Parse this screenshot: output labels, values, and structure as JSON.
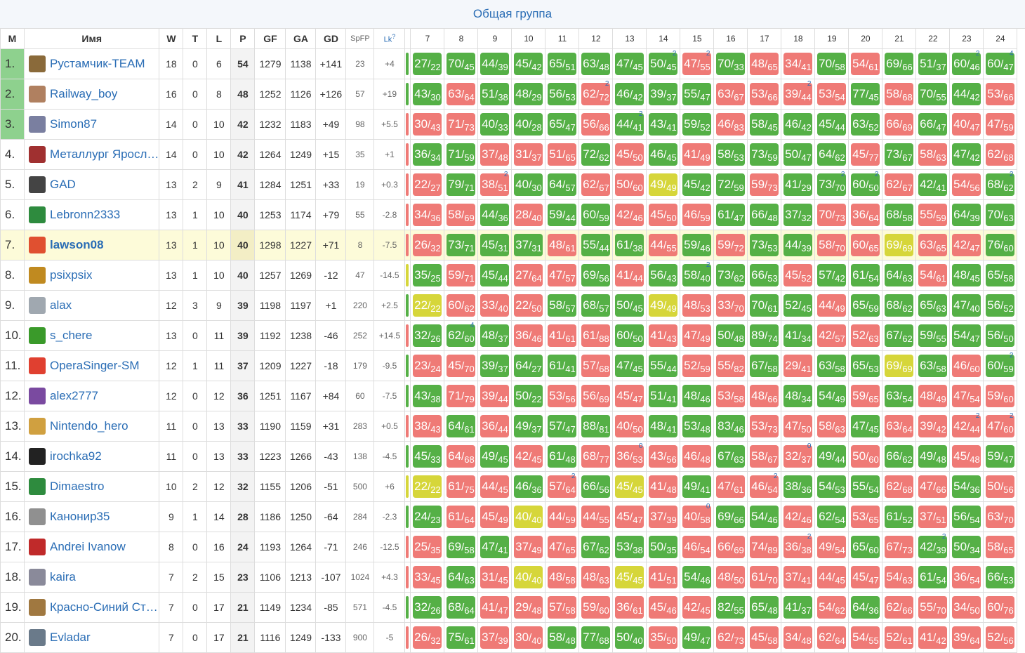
{
  "title": "Общая группа",
  "headers": {
    "m": "M",
    "name": "Имя",
    "w": "W",
    "t": "T",
    "l": "L",
    "p": "P",
    "gf": "GF",
    "ga": "GA",
    "gd": "GD",
    "spfp": "SpFP",
    "lk": "Lk",
    "lk_sup": "?"
  },
  "rounds": [
    "7",
    "8",
    "9",
    "10",
    "11",
    "12",
    "13",
    "14",
    "15",
    "16",
    "17",
    "18",
    "19",
    "20",
    "21",
    "22",
    "23",
    "24"
  ],
  "colors": {
    "win": "#55b046",
    "loss": "#ef7a76",
    "draw": "#d6d63a",
    "link": "#2a6db5",
    "top3": "#8ed18e",
    "highlight": "#fdfbd9"
  },
  "rows": [
    {
      "pos": "1.",
      "name": "Рустамчик-TEAM",
      "avatar": "#8a6a3a",
      "w": "18",
      "t": "0",
      "l": "6",
      "p": "54",
      "gf": "1279",
      "ga": "1138",
      "gd": "+141",
      "spfp": "23",
      "lk": "+4",
      "strip": "#55b046",
      "games": [
        "27/22",
        "70/45",
        "44/39",
        "45/42",
        "65/51",
        "63/48",
        "47/45",
        "50/45",
        "47/55",
        "70/33",
        "48/65",
        "34/41",
        "70/58",
        "54/61",
        "69/66",
        "51/37",
        "60/46",
        "60/47"
      ],
      "marks": {
        "7": "2",
        "8": "2",
        "16": "2",
        "17": "4"
      }
    },
    {
      "pos": "2.",
      "name": "Railway_boy",
      "avatar": "#b08060",
      "w": "16",
      "t": "0",
      "l": "8",
      "p": "48",
      "gf": "1252",
      "ga": "1126",
      "gd": "+126",
      "spfp": "57",
      "lk": "+19",
      "strip": "#55b046",
      "games": [
        "43/30",
        "63/64",
        "51/38",
        "48/29",
        "56/53",
        "62/72",
        "46/42",
        "39/37",
        "55/47",
        "63/67",
        "53/66",
        "39/44",
        "53/54",
        "77/45",
        "58/68",
        "70/55",
        "44/42",
        "53/66"
      ],
      "marks": {
        "5": "2",
        "11": "2"
      }
    },
    {
      "pos": "3.",
      "name": "Simon87",
      "avatar": "#7a7fa0",
      "w": "14",
      "t": "0",
      "l": "10",
      "p": "42",
      "gf": "1232",
      "ga": "1183",
      "gd": "+49",
      "spfp": "98",
      "lk": "+5.5",
      "strip": "#ef7a76",
      "games": [
        "30/43",
        "71/73",
        "40/33",
        "40/28",
        "65/47",
        "56/66",
        "44/41",
        "43/41",
        "59/52",
        "46/83",
        "58/45",
        "46/42",
        "45/44",
        "63/52",
        "66/69",
        "66/47",
        "40/47",
        "47/59"
      ],
      "marks": {
        "6": "2"
      }
    },
    {
      "pos": "4.",
      "name": "Металлург Яросл…",
      "avatar": "#a03030",
      "w": "14",
      "t": "0",
      "l": "10",
      "p": "42",
      "gf": "1264",
      "ga": "1249",
      "gd": "+15",
      "spfp": "35",
      "lk": "+1",
      "strip": "#ef7a76",
      "games": [
        "36/34",
        "71/59",
        "37/48",
        "31/37",
        "51/65",
        "72/62",
        "45/50",
        "46/45",
        "41/49",
        "58/53",
        "73/59",
        "50/47",
        "64/62",
        "45/77",
        "73/67",
        "58/63",
        "47/42",
        "62/68"
      ],
      "marks": {}
    },
    {
      "pos": "5.",
      "name": "GAD",
      "avatar": "#444444",
      "w": "13",
      "t": "2",
      "l": "9",
      "p": "41",
      "gf": "1284",
      "ga": "1251",
      "gd": "+33",
      "spfp": "19",
      "lk": "+0.3",
      "strip": "#ef7a76",
      "games": [
        "22/27",
        "79/71",
        "38/51",
        "40/30",
        "64/57",
        "62/67",
        "50/60",
        "49/49",
        "45/42",
        "72/59",
        "59/73",
        "41/29",
        "73/70",
        "60/50",
        "62/67",
        "42/41",
        "54/56",
        "68/62"
      ],
      "marks": {
        "2": "2",
        "12": "2",
        "13": "2",
        "17": "2"
      }
    },
    {
      "pos": "6.",
      "name": "Lebronn2333",
      "avatar": "#2e8b3e",
      "w": "13",
      "t": "1",
      "l": "10",
      "p": "40",
      "gf": "1253",
      "ga": "1174",
      "gd": "+79",
      "spfp": "55",
      "lk": "-2.8",
      "strip": "#ef7a76",
      "games": [
        "34/36",
        "58/69",
        "44/36",
        "28/40",
        "59/44",
        "60/59",
        "42/46",
        "45/50",
        "46/59",
        "61/47",
        "66/48",
        "37/32",
        "70/73",
        "36/64",
        "68/58",
        "55/59",
        "64/39",
        "70/63"
      ],
      "marks": {}
    },
    {
      "pos": "7.",
      "name": "lawson08",
      "avatar": "#e05030",
      "me": true,
      "w": "13",
      "t": "1",
      "l": "10",
      "p": "40",
      "gf": "1298",
      "ga": "1227",
      "gd": "+71",
      "spfp": "8",
      "lk": "-7.5",
      "strip": "#ef7a76",
      "games": [
        "26/32",
        "73/71",
        "45/31",
        "37/31",
        "48/61",
        "55/44",
        "61/38",
        "44/55",
        "59/46",
        "59/72",
        "73/53",
        "44/39",
        "58/70",
        "60/65",
        "69/69",
        "63/65",
        "42/47",
        "76/60"
      ],
      "marks": {}
    },
    {
      "pos": "8.",
      "name": "psixpsix",
      "avatar": "#c08a20",
      "w": "13",
      "t": "1",
      "l": "10",
      "p": "40",
      "gf": "1257",
      "ga": "1269",
      "gd": "-12",
      "spfp": "47",
      "lk": "-14.5",
      "strip": "#d6d63a",
      "games": [
        "35/25",
        "59/71",
        "45/44",
        "27/64",
        "47/57",
        "69/56",
        "41/44",
        "56/43",
        "58/40",
        "73/62",
        "66/53",
        "45/52",
        "57/42",
        "61/54",
        "64/63",
        "54/61",
        "48/45",
        "65/58"
      ],
      "marks": {
        "8": "2"
      }
    },
    {
      "pos": "9.",
      "name": "alax",
      "avatar": "#a0a8b0",
      "w": "12",
      "t": "3",
      "l": "9",
      "p": "39",
      "gf": "1198",
      "ga": "1197",
      "gd": "+1",
      "spfp": "220",
      "lk": "+2.5",
      "strip": "#55b046",
      "games": [
        "22/22",
        "60/62",
        "33/40",
        "22/50",
        "58/57",
        "68/57",
        "50/45",
        "49/49",
        "48/53",
        "33/70",
        "70/61",
        "52/45",
        "44/49",
        "65/59",
        "68/62",
        "65/63",
        "47/40",
        "56/52"
      ],
      "marks": {}
    },
    {
      "pos": "10.",
      "name": "s_chere",
      "avatar": "#3a9a2a",
      "w": "13",
      "t": "0",
      "l": "11",
      "p": "39",
      "gf": "1192",
      "ga": "1238",
      "gd": "-46",
      "spfp": "252",
      "lk": "+14.5",
      "strip": "#ef7a76",
      "games": [
        "32/26",
        "62/60",
        "48/37",
        "36/46",
        "41/61",
        "61/88",
        "60/50",
        "41/43",
        "47/49",
        "50/48",
        "89/74",
        "41/34",
        "42/57",
        "52/63",
        "67/62",
        "59/55",
        "54/47",
        "56/50"
      ],
      "marks": {
        "1": "4"
      }
    },
    {
      "pos": "11.",
      "name": "OperaSinger-SM",
      "avatar": "#e04030",
      "w": "12",
      "t": "1",
      "l": "11",
      "p": "37",
      "gf": "1209",
      "ga": "1227",
      "gd": "-18",
      "spfp": "179",
      "lk": "-9.5",
      "strip": "#55b046",
      "games": [
        "23/24",
        "45/70",
        "39/37",
        "64/27",
        "61/41",
        "57/68",
        "47/45",
        "55/44",
        "52/59",
        "55/82",
        "67/58",
        "29/41",
        "63/58",
        "65/53",
        "69/69",
        "63/58",
        "46/60",
        "60/59"
      ],
      "marks": {
        "17": "2"
      }
    },
    {
      "pos": "12.",
      "name": "alex2777",
      "avatar": "#7a4aa0",
      "w": "12",
      "t": "0",
      "l": "12",
      "p": "36",
      "gf": "1251",
      "ga": "1167",
      "gd": "+84",
      "spfp": "60",
      "lk": "-7.5",
      "strip": "#55b046",
      "games": [
        "43/38",
        "71/79",
        "39/44",
        "50/22",
        "53/56",
        "56/69",
        "45/47",
        "51/41",
        "48/46",
        "53/58",
        "48/66",
        "48/34",
        "54/49",
        "59/65",
        "63/54",
        "48/49",
        "47/54",
        "59/60"
      ],
      "marks": {}
    },
    {
      "pos": "13.",
      "name": "Nintendo_hero",
      "avatar": "#d0a040",
      "w": "11",
      "t": "0",
      "l": "13",
      "p": "33",
      "gf": "1190",
      "ga": "1159",
      "gd": "+31",
      "spfp": "283",
      "lk": "+0.5",
      "strip": "#ef7a76",
      "games": [
        "38/43",
        "64/61",
        "36/44",
        "49/37",
        "57/47",
        "88/81",
        "40/50",
        "48/41",
        "53/48",
        "83/46",
        "53/73",
        "47/50",
        "58/63",
        "47/45",
        "63/64",
        "39/42",
        "42/44",
        "47/60"
      ],
      "marks": {
        "16": "2",
        "17": "2"
      }
    },
    {
      "pos": "14.",
      "name": "irochka92",
      "avatar": "#222222",
      "w": "11",
      "t": "0",
      "l": "13",
      "p": "33",
      "gf": "1223",
      "ga": "1266",
      "gd": "-43",
      "spfp": "138",
      "lk": "-4.5",
      "strip": "#55b046",
      "games": [
        "45/33",
        "64/68",
        "49/45",
        "42/45",
        "61/48",
        "68/77",
        "36/53",
        "43/56",
        "46/48",
        "67/63",
        "58/67",
        "32/37",
        "49/44",
        "50/60",
        "66/62",
        "49/48",
        "45/48",
        "59/47"
      ],
      "marks": {
        "6": "0",
        "11": "0"
      }
    },
    {
      "pos": "15.",
      "name": "Dimaestro",
      "avatar": "#2e8b3e",
      "w": "10",
      "t": "2",
      "l": "12",
      "p": "32",
      "gf": "1155",
      "ga": "1206",
      "gd": "-51",
      "spfp": "500",
      "lk": "+6",
      "strip": "#d6d63a",
      "games": [
        "22/22",
        "61/75",
        "44/45",
        "46/36",
        "57/64",
        "66/56",
        "45/45",
        "41/48",
        "49/41",
        "47/61",
        "46/54",
        "38/36",
        "54/53",
        "55/54",
        "62/68",
        "47/66",
        "54/36",
        "50/56"
      ],
      "marks": {
        "4": "2",
        "10": "2"
      }
    },
    {
      "pos": "16.",
      "name": "Канонир35",
      "avatar": "#909090",
      "w": "9",
      "t": "1",
      "l": "14",
      "p": "28",
      "gf": "1186",
      "ga": "1250",
      "gd": "-64",
      "spfp": "284",
      "lk": "-2.3",
      "strip": "#55b046",
      "games": [
        "24/23",
        "61/64",
        "45/49",
        "40/40",
        "44/59",
        "44/55",
        "45/47",
        "37/39",
        "40/58",
        "69/66",
        "54/46",
        "42/46",
        "62/54",
        "53/65",
        "61/52",
        "37/51",
        "56/54",
        "63/70"
      ],
      "marks": {
        "8": "0"
      }
    },
    {
      "pos": "17.",
      "name": "Andrei Ivanow",
      "avatar": "#c02a2a",
      "w": "8",
      "t": "0",
      "l": "16",
      "p": "24",
      "gf": "1193",
      "ga": "1264",
      "gd": "-71",
      "spfp": "246",
      "lk": "-12.5",
      "strip": "#ef7a76",
      "games": [
        "25/35",
        "69/58",
        "47/41",
        "37/49",
        "47/65",
        "67/62",
        "53/38",
        "50/35",
        "46/54",
        "66/69",
        "74/89",
        "36/38",
        "49/54",
        "65/60",
        "67/73",
        "42/39",
        "50/34",
        "58/65"
      ],
      "marks": {
        "11": "2",
        "15": "2"
      }
    },
    {
      "pos": "18.",
      "name": "kaira",
      "avatar": "#8a8a9a",
      "w": "7",
      "t": "2",
      "l": "15",
      "p": "23",
      "gf": "1106",
      "ga": "1213",
      "gd": "-107",
      "spfp": "1024",
      "lk": "+4.3",
      "strip": "#ef7a76",
      "games": [
        "33/45",
        "64/63",
        "31/45",
        "40/40",
        "48/58",
        "48/63",
        "45/45",
        "41/51",
        "54/46",
        "48/50",
        "61/70",
        "37/41",
        "44/45",
        "45/47",
        "54/63",
        "61/54",
        "36/54",
        "66/53"
      ],
      "marks": {}
    },
    {
      "pos": "19.",
      "name": "Красно-Синий Ст…",
      "avatar": "#a07840",
      "w": "7",
      "t": "0",
      "l": "17",
      "p": "21",
      "gf": "1149",
      "ga": "1234",
      "gd": "-85",
      "spfp": "571",
      "lk": "-4.5",
      "strip": "#55b046",
      "games": [
        "32/26",
        "68/64",
        "41/47",
        "29/48",
        "57/58",
        "59/60",
        "36/61",
        "45/46",
        "42/45",
        "82/55",
        "65/48",
        "41/37",
        "54/62",
        "64/36",
        "62/66",
        "55/70",
        "34/50",
        "60/76"
      ],
      "marks": {}
    },
    {
      "pos": "20.",
      "name": "Evladar",
      "avatar": "#6a7a8a",
      "w": "7",
      "t": "0",
      "l": "17",
      "p": "21",
      "gf": "1116",
      "ga": "1249",
      "gd": "-133",
      "spfp": "900",
      "lk": "-5",
      "strip": "#ef7a76",
      "games": [
        "26/32",
        "75/61",
        "37/39",
        "30/40",
        "58/48",
        "77/68",
        "50/40",
        "35/50",
        "49/47",
        "62/73",
        "45/58",
        "34/48",
        "62/64",
        "54/55",
        "52/61",
        "41/42",
        "39/64",
        "52/56"
      ],
      "marks": {}
    }
  ]
}
